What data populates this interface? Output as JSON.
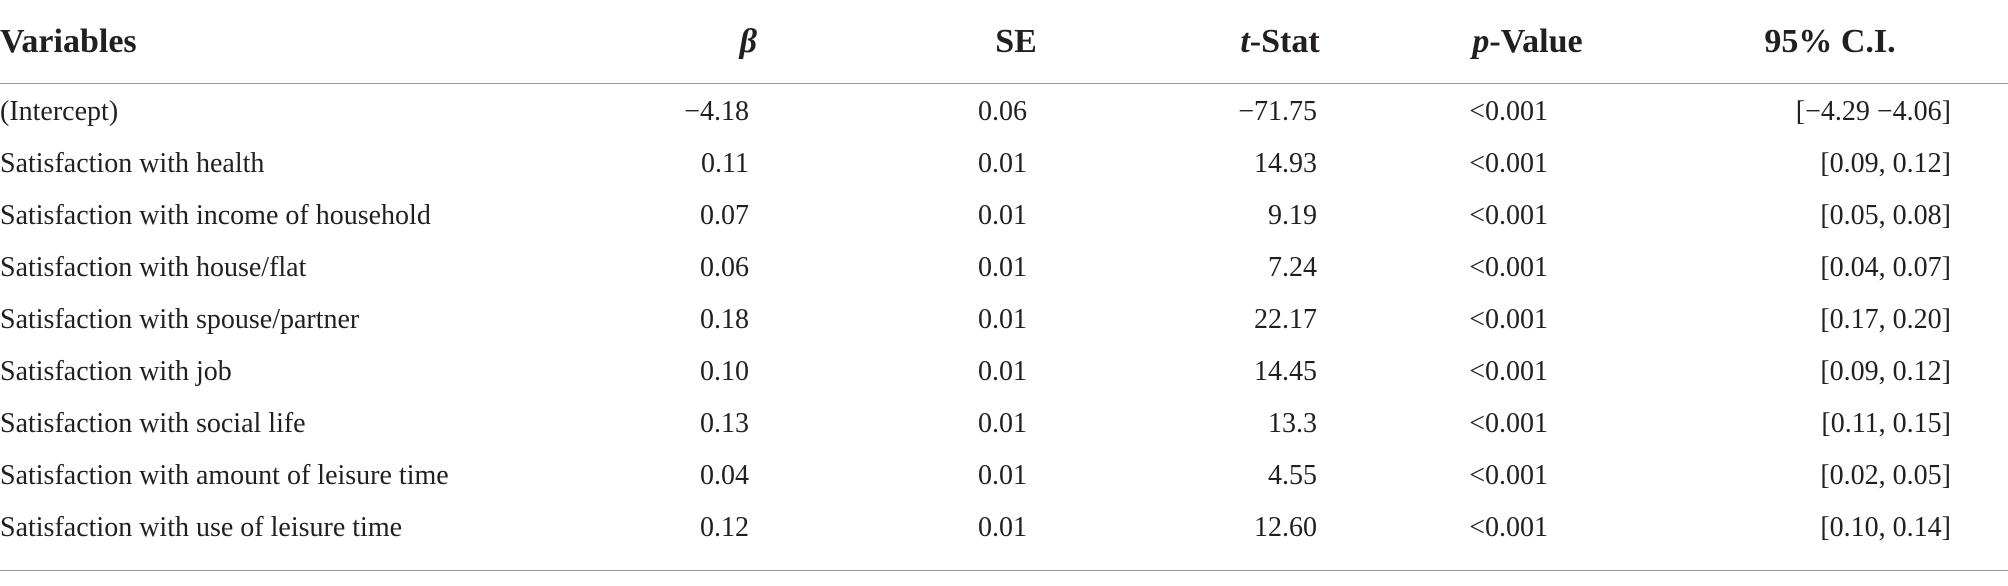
{
  "table": {
    "headers": {
      "variables": "Variables",
      "beta": "β",
      "se": "SE",
      "t_stat_italic": "t",
      "t_stat_rest": "-Stat",
      "p_value_italic": "p",
      "p_value_rest": "-Value",
      "ci": "95% C.I."
    },
    "rows": [
      {
        "variable": "(Intercept)",
        "beta": "−4.18",
        "se": "0.06",
        "t": "−71.75",
        "p": "<0.001",
        "ci": "[−4.29 −4.06]"
      },
      {
        "variable": "Satisfaction with health",
        "beta": "0.11",
        "se": "0.01",
        "t": "14.93",
        "p": "<0.001",
        "ci": "[0.09, 0.12]"
      },
      {
        "variable": "Satisfaction with income of household",
        "beta": "0.07",
        "se": "0.01",
        "t": "9.19",
        "p": "<0.001",
        "ci": "[0.05, 0.08]"
      },
      {
        "variable": "Satisfaction with house/flat",
        "beta": "0.06",
        "se": "0.01",
        "t": "7.24",
        "p": "<0.001",
        "ci": "[0.04, 0.07]"
      },
      {
        "variable": "Satisfaction with spouse/partner",
        "beta": "0.18",
        "se": "0.01",
        "t": "22.17",
        "p": "<0.001",
        "ci": "[0.17, 0.20]"
      },
      {
        "variable": "Satisfaction with job",
        "beta": "0.10",
        "se": "0.01",
        "t": "14.45",
        "p": "<0.001",
        "ci": "[0.09, 0.12]"
      },
      {
        "variable": "Satisfaction with social life",
        "beta": "0.13",
        "se": "0.01",
        "t": "13.3",
        "p": "<0.001",
        "ci": "[0.11, 0.15]"
      },
      {
        "variable": "Satisfaction with amount of leisure time",
        "beta": "0.04",
        "se": "0.01",
        "t": "4.55",
        "p": "<0.001",
        "ci": "[0.02, 0.05]"
      },
      {
        "variable": "Satisfaction with use of leisure time",
        "beta": "0.12",
        "se": "0.01",
        "t": "12.60",
        "p": "<0.001",
        "ci": "[0.10, 0.14]"
      }
    ]
  }
}
